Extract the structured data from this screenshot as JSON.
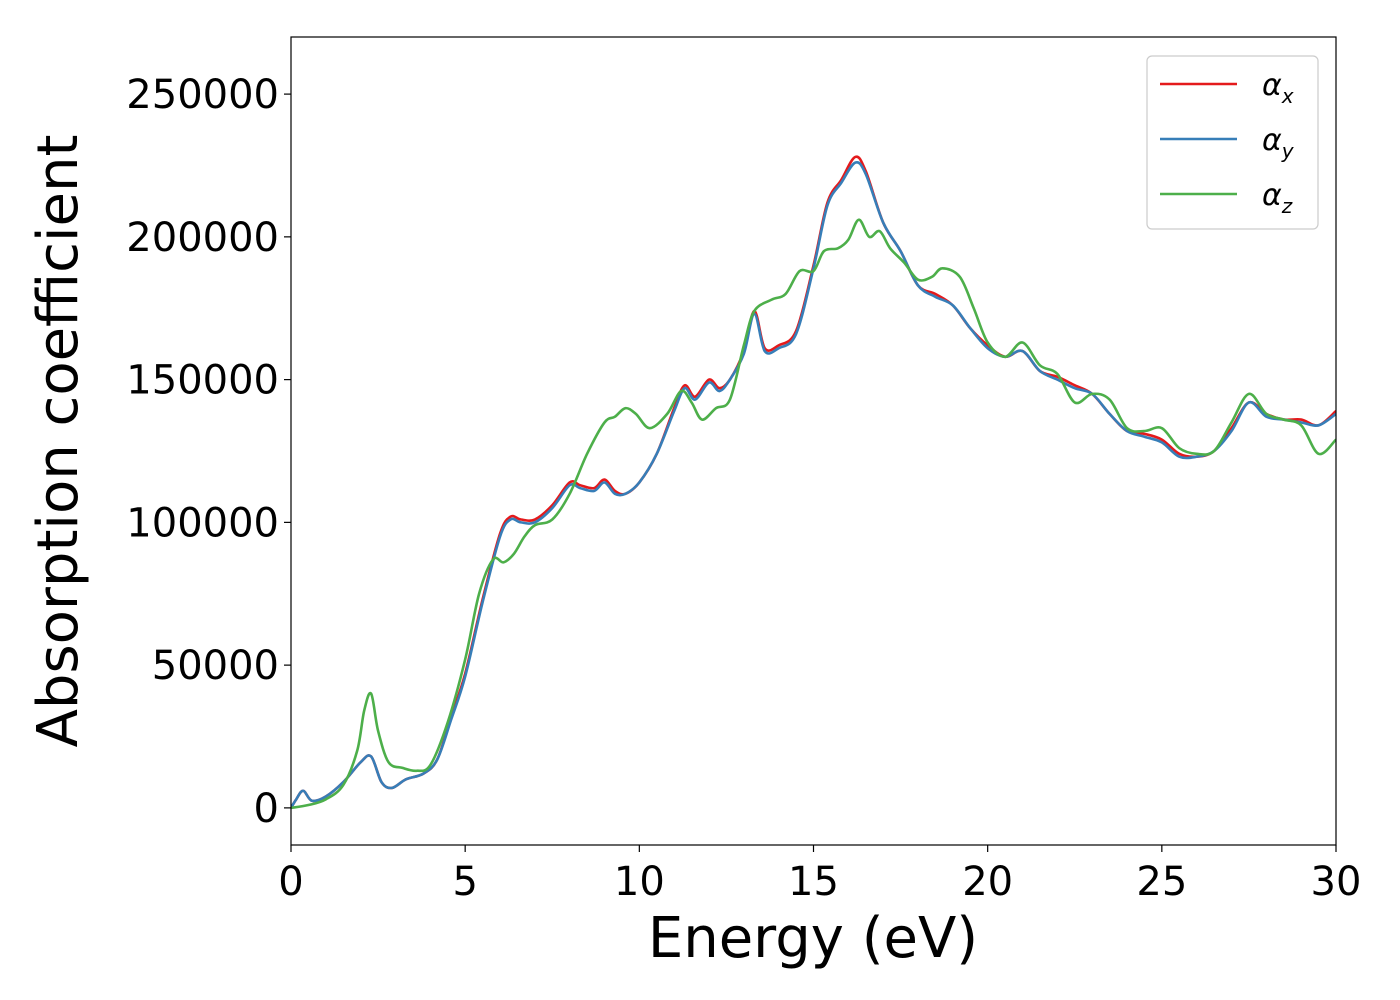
{
  "chart_data": {
    "type": "line",
    "xlabel": "Energy (eV)",
    "ylabel": "Absorption coefficient",
    "xlim": [
      0,
      30
    ],
    "ylim": [
      -13000,
      270000
    ],
    "xticks": [
      "0",
      "5",
      "10",
      "15",
      "20",
      "25",
      "30"
    ],
    "yticks": [
      "0",
      "50000",
      "100000",
      "150000",
      "200000",
      "250000"
    ],
    "grid": false,
    "legend_position": "top-right",
    "series": [
      {
        "name": "αx",
        "symbol": "α",
        "subscript": "x",
        "color": "#e41a1c",
        "x": [
          0,
          0.15,
          0.35,
          0.6,
          1.0,
          1.5,
          2.0,
          2.3,
          2.6,
          2.9,
          3.3,
          3.8,
          4.2,
          4.6,
          5.0,
          5.5,
          6.0,
          6.3,
          6.6,
          7.0,
          7.5,
          8.0,
          8.3,
          8.7,
          9.0,
          9.3,
          9.6,
          10.0,
          10.5,
          11.0,
          11.3,
          11.6,
          12.0,
          12.3,
          12.6,
          13.0,
          13.3,
          13.6,
          14.0,
          14.5,
          15.0,
          15.4,
          15.8,
          16.2,
          16.5,
          17.0,
          17.5,
          18.0,
          18.5,
          19.0,
          19.5,
          20.0,
          20.5,
          21.0,
          21.5,
          22.0,
          22.5,
          23.0,
          23.5,
          24.0,
          24.5,
          25.0,
          25.5,
          26.0,
          26.5,
          27.0,
          27.5,
          28.0,
          28.5,
          29.0,
          29.5,
          30.0
        ],
        "y": [
          0,
          3000,
          6000,
          2500,
          4000,
          9000,
          16000,
          18000,
          9000,
          7000,
          10000,
          12000,
          17000,
          32000,
          47000,
          73000,
          96000,
          102000,
          101000,
          101000,
          106000,
          114000,
          113000,
          112000,
          115000,
          111000,
          110000,
          114000,
          124000,
          140000,
          148000,
          144000,
          150000,
          147000,
          150000,
          160000,
          174000,
          161000,
          162000,
          167000,
          190000,
          212000,
          220000,
          228000,
          223000,
          205000,
          195000,
          183000,
          180000,
          176000,
          168000,
          162000,
          158000,
          160000,
          153000,
          151000,
          148000,
          145000,
          138000,
          132000,
          131000,
          129000,
          124000,
          123000,
          125000,
          133000,
          142000,
          138000,
          136000,
          136000,
          134000,
          139000
        ]
      },
      {
        "name": "αy",
        "symbol": "α",
        "subscript": "y",
        "color": "#377eb8",
        "x": [
          0,
          0.15,
          0.35,
          0.6,
          1.0,
          1.5,
          2.0,
          2.3,
          2.6,
          2.9,
          3.3,
          3.8,
          4.2,
          4.6,
          5.0,
          5.5,
          6.0,
          6.3,
          6.6,
          7.0,
          7.5,
          8.0,
          8.3,
          8.7,
          9.0,
          9.3,
          9.6,
          10.0,
          10.5,
          11.0,
          11.3,
          11.6,
          12.0,
          12.3,
          12.6,
          13.0,
          13.3,
          13.6,
          14.0,
          14.5,
          15.0,
          15.4,
          15.8,
          16.2,
          16.5,
          17.0,
          17.5,
          18.0,
          18.5,
          19.0,
          19.5,
          20.0,
          20.5,
          21.0,
          21.5,
          22.0,
          22.5,
          23.0,
          23.5,
          24.0,
          24.5,
          25.0,
          25.5,
          26.0,
          26.5,
          27.0,
          27.5,
          28.0,
          28.5,
          29.0,
          29.5,
          30.0
        ],
        "y": [
          0,
          3000,
          6000,
          2500,
          4000,
          9000,
          16000,
          18000,
          9000,
          7000,
          10000,
          12000,
          17000,
          31000,
          46000,
          72000,
          95000,
          101000,
          100000,
          100000,
          105000,
          113000,
          112000,
          111000,
          114000,
          110000,
          110000,
          114000,
          124000,
          139000,
          147000,
          143000,
          149000,
          146000,
          150000,
          159000,
          173000,
          160000,
          161000,
          166000,
          189000,
          211000,
          219000,
          226000,
          222000,
          205000,
          195000,
          183000,
          179000,
          176000,
          168000,
          161000,
          158000,
          160000,
          153000,
          150000,
          147000,
          145000,
          138000,
          132000,
          130000,
          128000,
          123000,
          123000,
          125000,
          132000,
          142000,
          137000,
          136000,
          135000,
          134000,
          138000
        ]
      },
      {
        "name": "αz",
        "symbol": "α",
        "subscript": "z",
        "color": "#4daf4a",
        "x": [
          0,
          0.5,
          1.0,
          1.5,
          1.9,
          2.1,
          2.3,
          2.5,
          2.8,
          3.2,
          3.6,
          4.0,
          4.5,
          5.0,
          5.4,
          5.8,
          6.1,
          6.4,
          6.7,
          7.0,
          7.5,
          8.0,
          8.5,
          9.0,
          9.3,
          9.6,
          9.9,
          10.3,
          10.8,
          11.2,
          11.5,
          11.8,
          12.2,
          12.6,
          13.0,
          13.3,
          13.8,
          14.2,
          14.6,
          15.0,
          15.3,
          15.7,
          16.0,
          16.3,
          16.6,
          16.9,
          17.2,
          17.6,
          18.0,
          18.4,
          18.7,
          19.2,
          19.6,
          20.0,
          20.5,
          21.0,
          21.5,
          22.0,
          22.5,
          23.0,
          23.5,
          24.0,
          24.5,
          25.0,
          25.5,
          26.0,
          26.5,
          27.0,
          27.5,
          28.0,
          28.5,
          29.0,
          29.5,
          30.0
        ],
        "y": [
          0,
          1000,
          3000,
          8000,
          20000,
          34000,
          40000,
          27000,
          16000,
          14000,
          13000,
          15000,
          30000,
          52000,
          75000,
          87000,
          86000,
          89000,
          95000,
          99000,
          101000,
          110000,
          124000,
          135000,
          137000,
          140000,
          138000,
          133000,
          138000,
          146000,
          142000,
          136000,
          140000,
          143000,
          162000,
          174000,
          178000,
          180000,
          188000,
          188000,
          195000,
          196000,
          199000,
          206000,
          200000,
          202000,
          196000,
          191000,
          185000,
          186000,
          189000,
          186000,
          175000,
          163000,
          158000,
          163000,
          155000,
          152000,
          142000,
          145000,
          143000,
          133000,
          132000,
          133000,
          126000,
          124000,
          125000,
          135000,
          145000,
          138000,
          136000,
          134000,
          124000,
          129000
        ]
      }
    ]
  }
}
